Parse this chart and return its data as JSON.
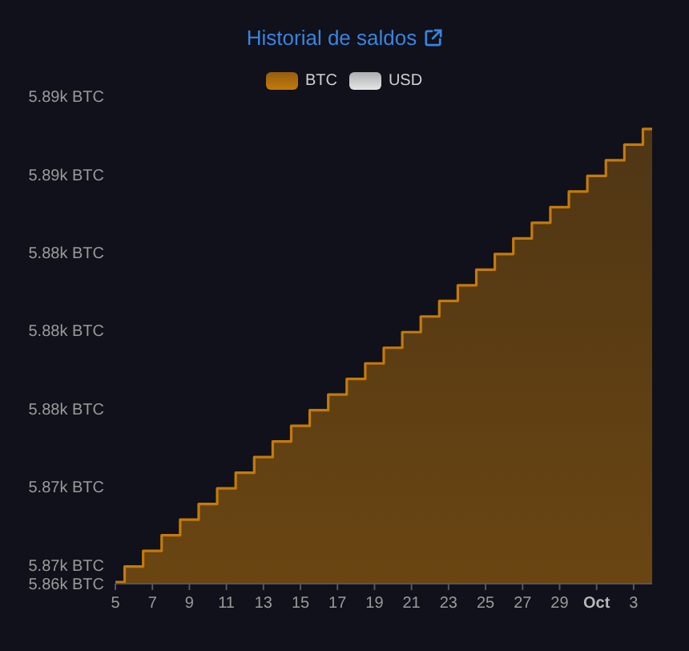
{
  "chart_data": {
    "type": "step",
    "title": "Historial de saldos",
    "x": [
      "--09-05",
      "--09-06",
      "--09-07",
      "--09-08",
      "--09-09",
      "--09-10",
      "--09-11",
      "--09-12",
      "--09-13",
      "--09-14",
      "--09-15",
      "--09-16",
      "--09-17",
      "--09-18",
      "--09-19",
      "--09-20",
      "--09-21",
      "--09-22",
      "--09-23",
      "--09-24",
      "--09-25",
      "--09-26",
      "--09-27",
      "--09-28",
      "--09-29",
      "--09-30",
      "--10-01",
      "--10-02",
      "--10-03",
      "--10-04"
    ],
    "series": [
      {
        "name": "BTC",
        "type": "area",
        "color": "#c47a0a",
        "values": [
          5863.9,
          5864.9,
          5865.9,
          5866.9,
          5867.9,
          5868.9,
          5869.9,
          5870.9,
          5871.9,
          5872.9,
          5873.9,
          5874.9,
          5875.9,
          5876.9,
          5877.9,
          5878.9,
          5879.9,
          5880.9,
          5881.9,
          5882.9,
          5883.9,
          5884.9,
          5885.9,
          5886.9,
          5887.9,
          5888.9,
          5889.9,
          5890.9,
          5891.9,
          5892.9
        ]
      },
      {
        "name": "USD",
        "color": "#e6e6e6",
        "values": [
          null,
          null,
          null,
          null,
          null,
          null,
          null,
          null,
          null,
          null,
          null,
          null,
          null,
          null,
          null,
          null,
          null,
          null,
          null,
          null,
          null,
          null,
          null,
          null,
          null,
          null,
          null,
          null,
          null,
          null
        ]
      }
    ],
    "xlim": [
      "--09-05",
      "--10-04"
    ],
    "xticks": [
      {
        "value": "--09-05",
        "label": "5"
      },
      {
        "value": "--09-07",
        "label": "7"
      },
      {
        "value": "--09-09",
        "label": "9"
      },
      {
        "value": "--09-11",
        "label": "11"
      },
      {
        "value": "--09-13",
        "label": "13"
      },
      {
        "value": "--09-15",
        "label": "15"
      },
      {
        "value": "--09-17",
        "label": "17"
      },
      {
        "value": "--09-19",
        "label": "19"
      },
      {
        "value": "--09-21",
        "label": "21"
      },
      {
        "value": "--09-23",
        "label": "23"
      },
      {
        "value": "--09-25",
        "label": "25"
      },
      {
        "value": "--09-27",
        "label": "27"
      },
      {
        "value": "--09-29",
        "label": "29"
      },
      {
        "value": "--10-01",
        "label": "Oct"
      },
      {
        "value": "--10-03",
        "label": "3"
      }
    ],
    "ylim": [
      5863.8,
      5895
    ],
    "yticks": [
      {
        "value": 5863.8,
        "label": "5.86k BTC"
      },
      {
        "value": 5865,
        "label": "5.87k BTC"
      },
      {
        "value": 5870,
        "label": "5.87k BTC"
      },
      {
        "value": 5875,
        "label": "5.88k BTC"
      },
      {
        "value": 5880,
        "label": "5.88k BTC"
      },
      {
        "value": 5885,
        "label": "5.88k BTC"
      },
      {
        "value": 5890,
        "label": "5.89k BTC"
      },
      {
        "value": 5895,
        "label": "5.89k BTC"
      }
    ],
    "legend": "top"
  }
}
